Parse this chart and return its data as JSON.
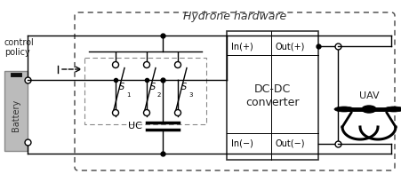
{
  "title": "Hydrone hardware",
  "bg_color": "#ffffff",
  "battery_label": "Battery",
  "dc_label_1": "DC-DC",
  "dc_label_2": "converter",
  "dc_in_plus": "In(+)",
  "dc_out_plus": "Out(+)",
  "dc_in_minus": "In(−)",
  "dc_out_minus": "Out(−)",
  "uc_label": "UC",
  "control_label_1": "control",
  "control_label_2": "policy",
  "uav_label": "UAV",
  "line_color": "#000000",
  "lw": 1.0
}
